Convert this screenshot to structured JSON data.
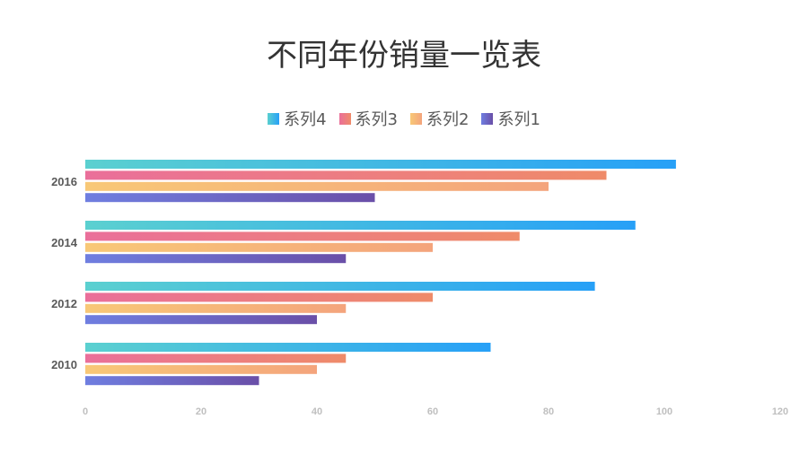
{
  "chart_data": {
    "type": "bar",
    "orientation": "horizontal",
    "title": "不同年份销量一览表",
    "categories": [
      "2010",
      "2012",
      "2014",
      "2016"
    ],
    "series": [
      {
        "name": "系列1",
        "values": [
          30,
          40,
          45,
          50
        ],
        "colors": [
          "#6f7ee0",
          "#6a4fa8"
        ]
      },
      {
        "name": "系列2",
        "values": [
          40,
          45,
          60,
          80
        ],
        "colors": [
          "#f8c877",
          "#f4a47c"
        ]
      },
      {
        "name": "系列3",
        "values": [
          45,
          60,
          75,
          90
        ],
        "colors": [
          "#ea6f9a",
          "#ef8b69"
        ]
      },
      {
        "name": "系列4",
        "values": [
          70,
          88,
          95,
          102
        ],
        "colors": [
          "#5bd0d0",
          "#27a0f7"
        ]
      }
    ],
    "legend_order": [
      "系列4",
      "系列3",
      "系列2",
      "系列1"
    ],
    "legend_position": "top",
    "xlim": [
      0,
      120
    ],
    "xticks": [
      "0",
      "20",
      "40",
      "60",
      "80",
      "100",
      "120"
    ],
    "grid": false
  }
}
